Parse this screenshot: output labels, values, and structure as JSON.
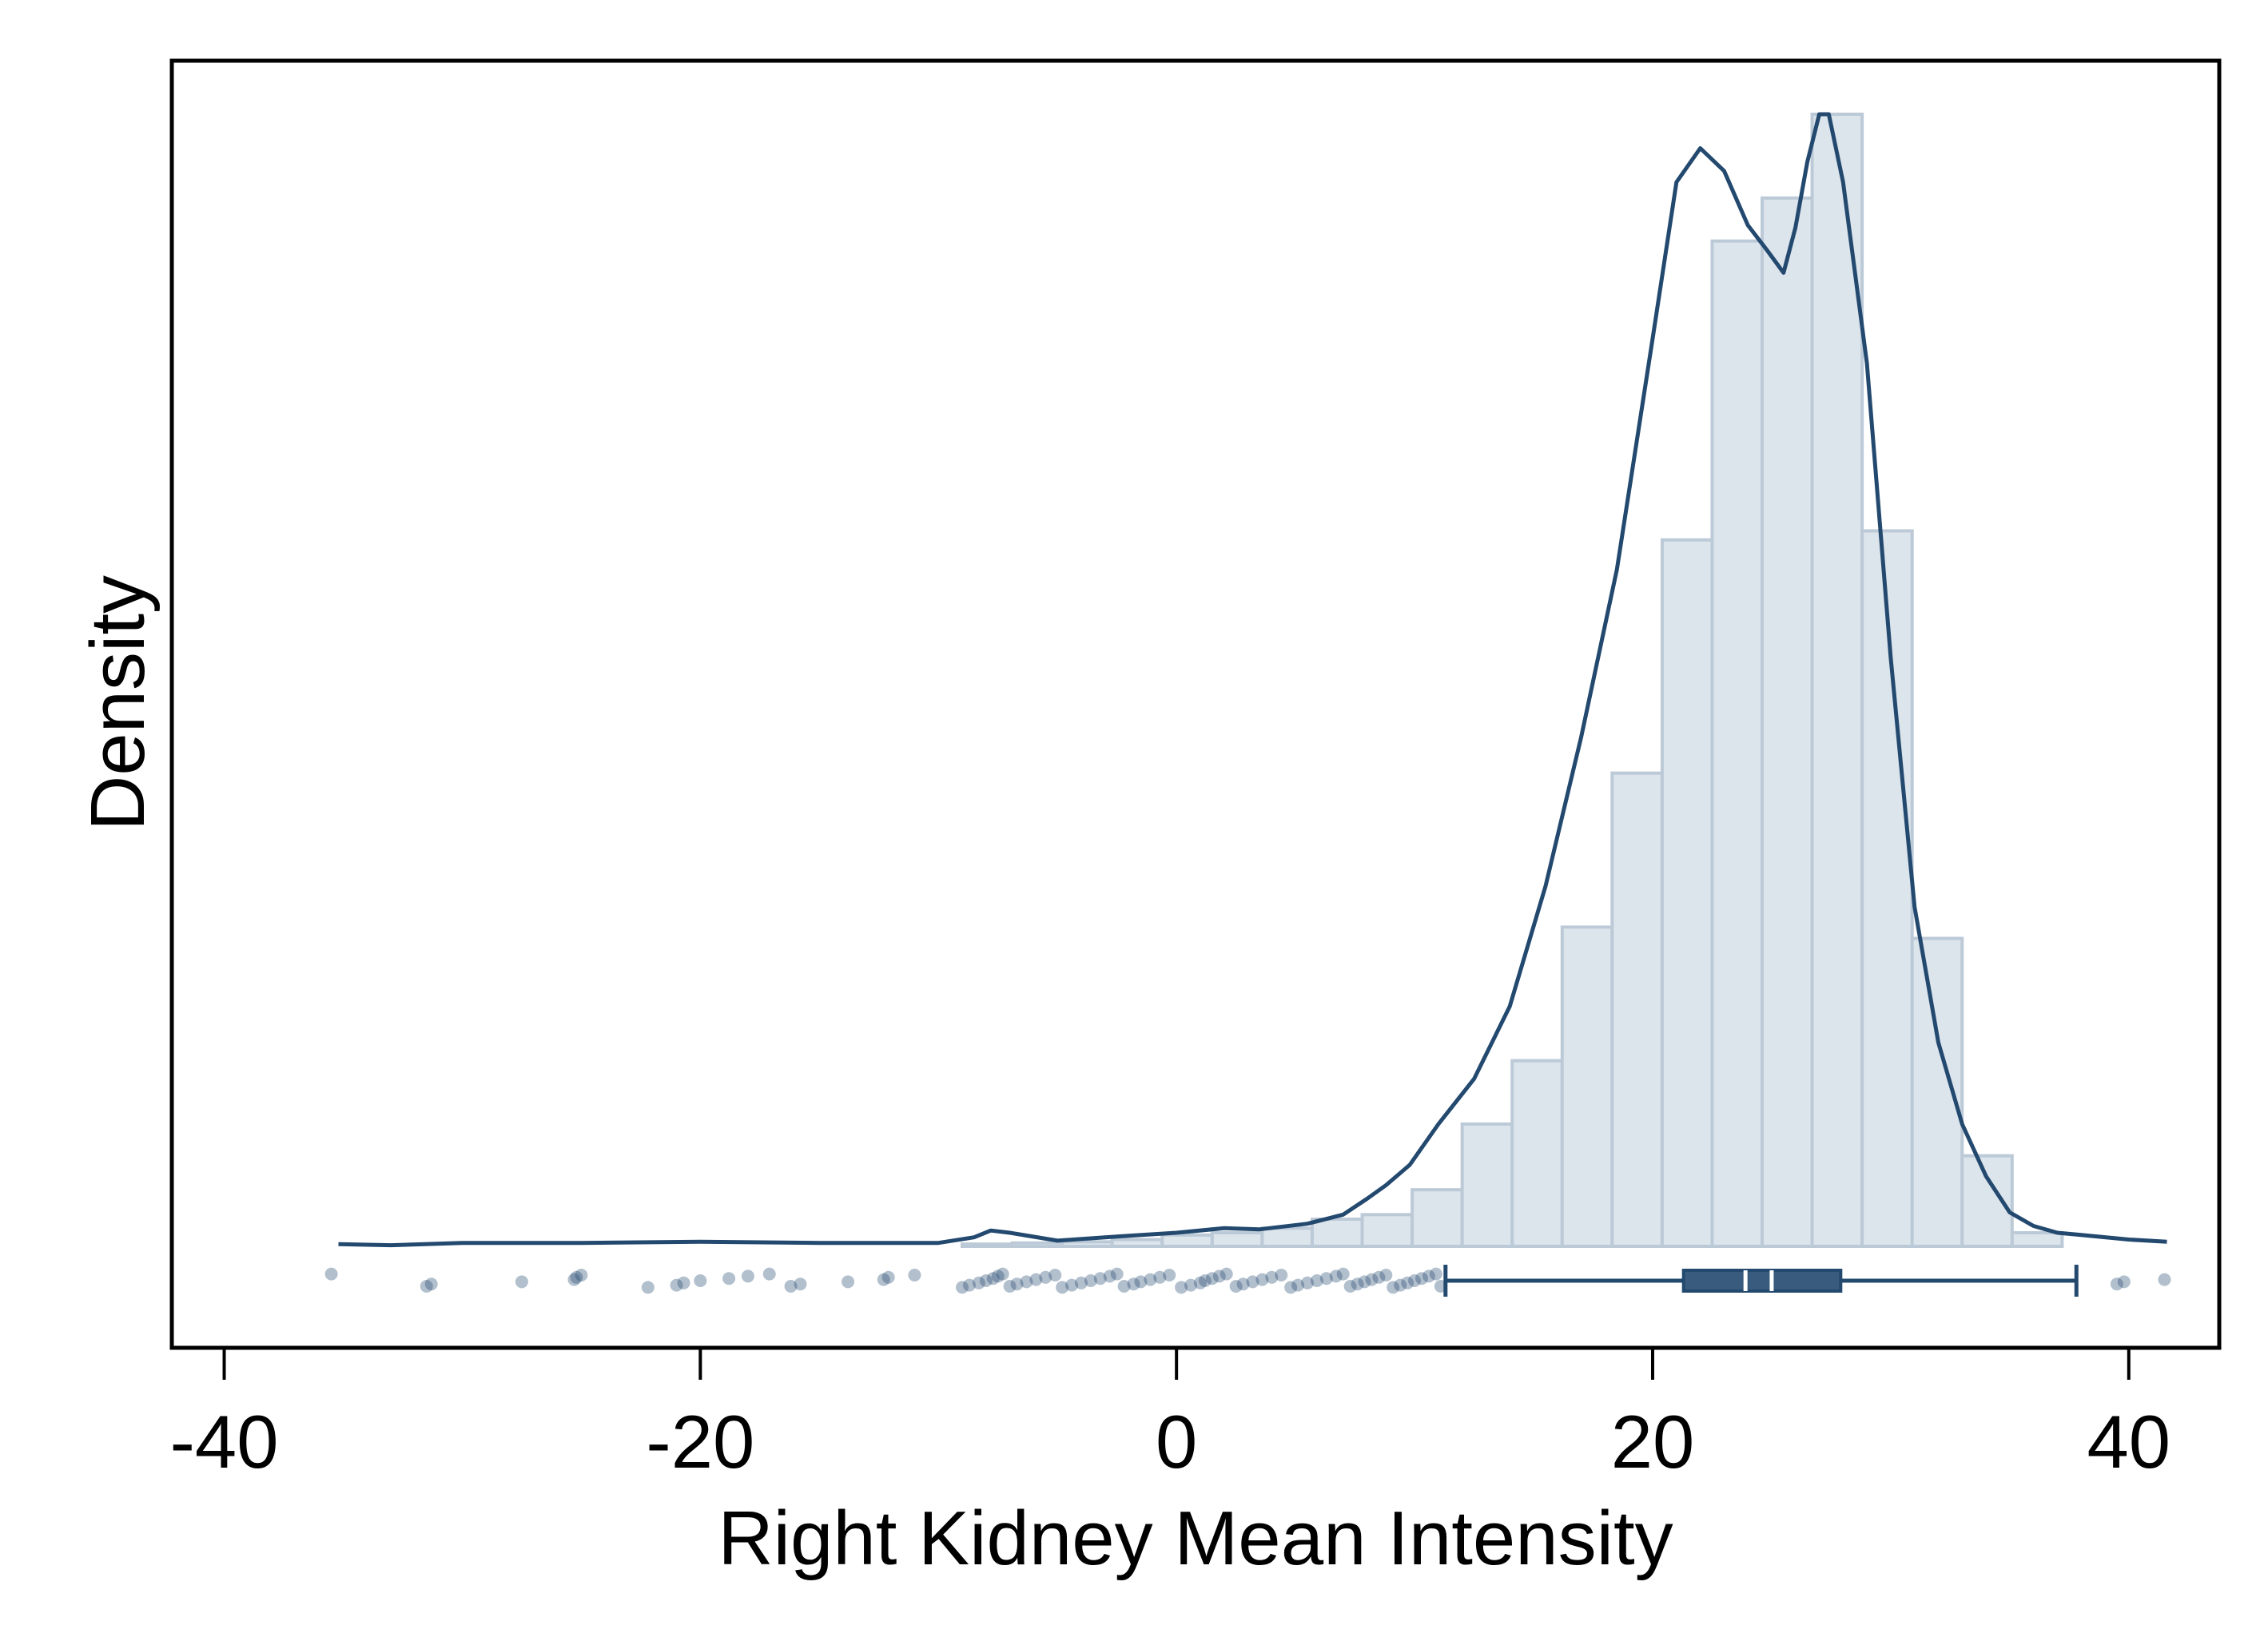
{
  "chart_data": {
    "type": "histogram",
    "title": "",
    "xlabel": "Right Kidney Mean Intensity",
    "ylabel": "Density",
    "xlim": [
      -42.2,
      43.8
    ],
    "x_ticks": [
      "-40",
      "-20",
      "0",
      "20",
      "40"
    ],
    "x_tick_values": [
      -40,
      -20,
      0,
      20,
      40
    ],
    "y_ticks_shown": false,
    "grid": false,
    "legend": "none",
    "colors": {
      "bar_fill": "#dce4ec",
      "bar_stroke": "#bccad8",
      "curve": "#23496f",
      "points": "#23496f",
      "box": "#23496f"
    },
    "histogram": {
      "bin_width": 2.1,
      "bin_starts": [
        -9.0,
        -6.9,
        -4.8,
        -2.7,
        -0.6,
        1.5,
        3.6,
        5.7,
        7.8,
        9.9,
        12.0,
        14.1,
        16.2,
        18.3,
        20.4,
        22.5,
        24.6,
        26.7,
        28.8,
        30.9,
        33.0,
        35.1
      ],
      "relative_density": [
        0.002,
        0.003,
        0.004,
        0.006,
        0.01,
        0.012,
        0.016,
        0.024,
        0.028,
        0.05,
        0.108,
        0.164,
        0.282,
        0.418,
        0.624,
        0.888,
        0.926,
        1.0,
        0.632,
        0.272,
        0.08,
        0.012
      ]
    },
    "density_curve": {
      "x": [
        -35.2,
        -33,
        -30,
        -25,
        -20,
        -15,
        -10,
        -8.5,
        -7.8,
        -7,
        -5,
        -3,
        0,
        2,
        3.5,
        5.5,
        7,
        8,
        8.8,
        9.8,
        11,
        12.5,
        14,
        15.5,
        17,
        18.5,
        20,
        21,
        22,
        23,
        24,
        24.8,
        25.5,
        26,
        26.5,
        27,
        27.4,
        28,
        29,
        30,
        31,
        32,
        33,
        34,
        35,
        36,
        37,
        38,
        40,
        41.6
      ],
      "relative_density": [
        0.002,
        0.001,
        0.003,
        0.003,
        0.004,
        0.003,
        0.003,
        0.008,
        0.014,
        0.012,
        0.005,
        0.008,
        0.012,
        0.016,
        0.015,
        0.02,
        0.028,
        0.042,
        0.054,
        0.072,
        0.108,
        0.148,
        0.212,
        0.318,
        0.45,
        0.598,
        0.802,
        0.94,
        0.97,
        0.95,
        0.902,
        0.88,
        0.86,
        0.9,
        0.958,
        1.0,
        1.0,
        0.94,
        0.78,
        0.52,
        0.3,
        0.18,
        0.108,
        0.062,
        0.03,
        0.018,
        0.012,
        0.01,
        0.006,
        0.004
      ]
    },
    "box": {
      "whisker_low": 11.3,
      "q1": 21.3,
      "median": 23.9,
      "mean": 25.0,
      "q3": 27.9,
      "whisker_high": 37.8
    },
    "outliers": [
      -35.5,
      -31.5,
      -31.3,
      -27.5,
      -25.3,
      -25.2,
      -25.0,
      -22.2,
      -21.0,
      -20.7,
      -20.0,
      -18.8,
      -18.0,
      -17.1,
      -16.2,
      -15.8,
      -13.8,
      -12.3,
      -12.1,
      -11.0,
      -9.0,
      -8.7,
      -8.3,
      -8.0,
      -7.7,
      -7.5,
      -7.3,
      -7.0,
      -6.7,
      -6.3,
      -5.9,
      -5.5,
      -5.1,
      -4.8,
      -4.4,
      -4.0,
      -3.6,
      -3.2,
      -2.8,
      -2.5,
      -2.2,
      -1.8,
      -1.5,
      -1.1,
      -0.7,
      -0.3,
      0.2,
      0.6,
      1.0,
      1.2,
      1.5,
      1.8,
      2.1,
      2.5,
      2.8,
      3.2,
      3.6,
      4.0,
      4.4,
      4.8,
      5.1,
      5.5,
      5.9,
      6.3,
      6.7,
      7.0,
      7.3,
      7.6,
      7.9,
      8.2,
      8.5,
      8.8,
      9.1,
      9.4,
      9.7,
      10.0,
      10.3,
      10.6,
      10.9,
      11.1,
      39.5,
      39.8,
      41.5
    ]
  }
}
